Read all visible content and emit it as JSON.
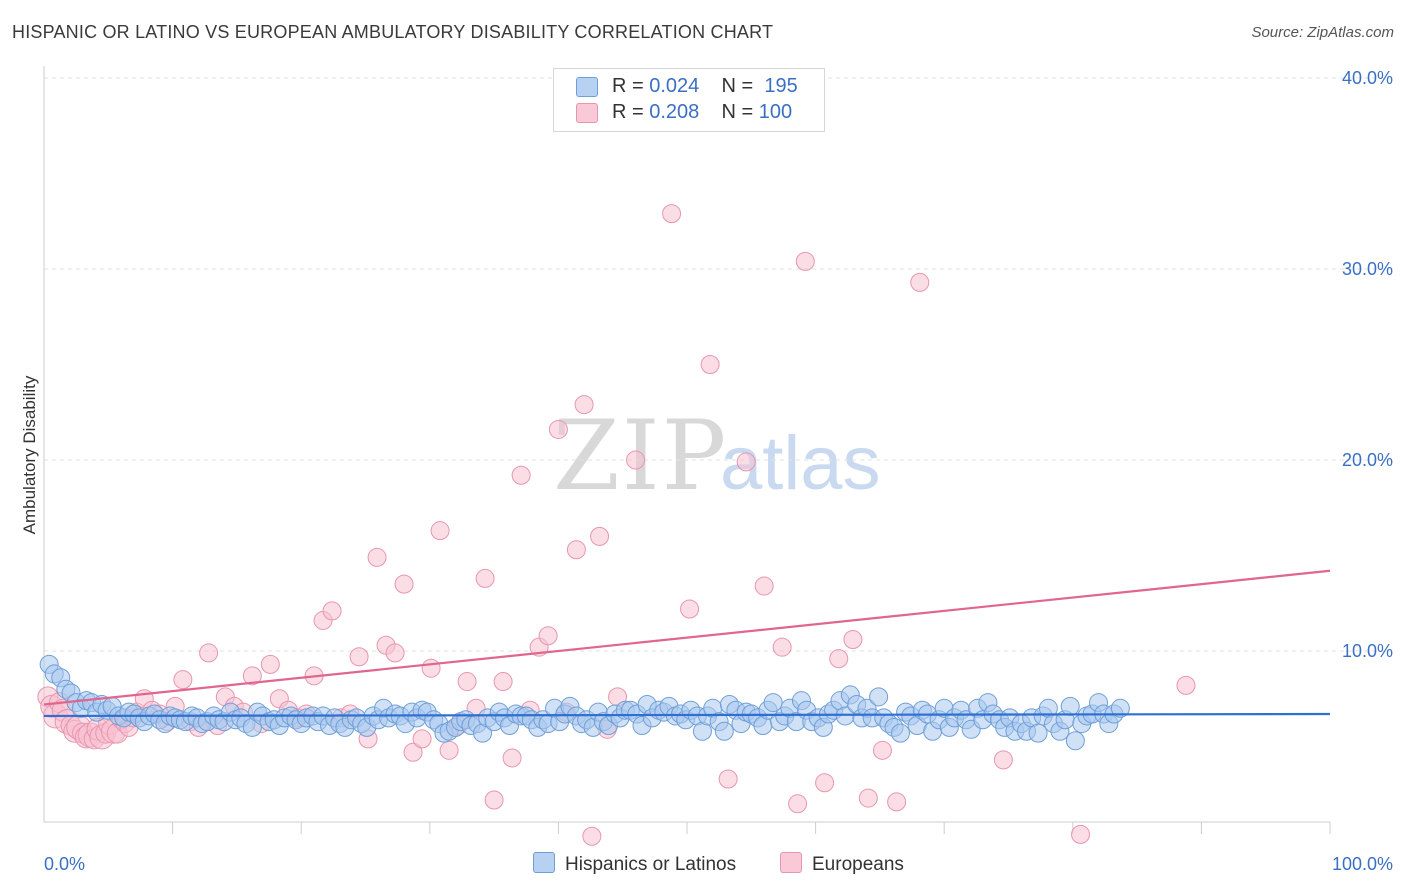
{
  "title": "HISPANIC OR LATINO VS EUROPEAN AMBULATORY DISABILITY CORRELATION CHART",
  "source": "Source: ZipAtlas.com",
  "watermark": {
    "zip": "ZIP",
    "atlas": "atlas"
  },
  "legend": {
    "rows": [
      {
        "r_label": "R = ",
        "r_value": "0.024",
        "n_label": "N = ",
        "n_value": "195"
      },
      {
        "r_label": "R = ",
        "r_value": "0.208",
        "n_label": "N = ",
        "n_value": "100"
      }
    ]
  },
  "bottom_legend": [
    "Hispanics or Latinos",
    "Europeans"
  ],
  "colors": {
    "blue_fill": "#a9c8ef",
    "blue_stroke": "#6f9fd8",
    "blue_line": "#2e6fd1",
    "pink_fill": "#f7c1d1",
    "pink_stroke": "#e896b0",
    "pink_line": "#e0668f",
    "axis_label": "#3b6fc4",
    "grid": "#e2e2e2"
  },
  "chart_data": {
    "type": "scatter",
    "title": "HISPANIC OR LATINO VS EUROPEAN AMBULATORY DISABILITY CORRELATION CHART",
    "xlabel": "",
    "ylabel": "Ambulatory Disability",
    "xlim": [
      0,
      100
    ],
    "ylim": [
      0,
      40
    ],
    "x_tick_labels": [
      "0.0%",
      "100.0%"
    ],
    "y_ticks": [
      10,
      20,
      30,
      40
    ],
    "y_tick_labels": [
      "10.0%",
      "20.0%",
      "30.0%",
      "40.0%"
    ],
    "grid": true,
    "legend_position": "top-center",
    "series": [
      {
        "name": "Hispanics or Latinos",
        "r": 0.024,
        "n": 195,
        "trend": [
          [
            0,
            6.6
          ],
          [
            100,
            6.7
          ]
        ],
        "points": [
          [
            0.4,
            9.3
          ],
          [
            0.8,
            8.8
          ],
          [
            1.3,
            8.6
          ],
          [
            1.7,
            8.0
          ],
          [
            2.1,
            7.8
          ],
          [
            2.5,
            7.3
          ],
          [
            2.9,
            7.0
          ],
          [
            3.3,
            7.4
          ],
          [
            3.7,
            7.3
          ],
          [
            4.1,
            6.8
          ],
          [
            4.5,
            7.2
          ],
          [
            4.9,
            6.9
          ],
          [
            5.3,
            7.1
          ],
          [
            5.8,
            6.6
          ],
          [
            6.2,
            6.5
          ],
          [
            6.6,
            6.8
          ],
          [
            7.0,
            6.7
          ],
          [
            7.4,
            6.5
          ],
          [
            7.8,
            6.3
          ],
          [
            8.2,
            6.6
          ],
          [
            8.6,
            6.7
          ],
          [
            9.0,
            6.4
          ],
          [
            9.4,
            6.2
          ],
          [
            9.8,
            6.6
          ],
          [
            10.2,
            6.5
          ],
          [
            10.6,
            6.4
          ],
          [
            11.0,
            6.3
          ],
          [
            11.5,
            6.6
          ],
          [
            11.9,
            6.5
          ],
          [
            12.3,
            6.2
          ],
          [
            12.7,
            6.3
          ],
          [
            13.2,
            6.6
          ],
          [
            13.6,
            6.4
          ],
          [
            14.0,
            6.3
          ],
          [
            14.5,
            6.8
          ],
          [
            14.9,
            6.4
          ],
          [
            15.3,
            6.5
          ],
          [
            15.7,
            6.2
          ],
          [
            16.2,
            6.0
          ],
          [
            16.6,
            6.8
          ],
          [
            17.0,
            6.6
          ],
          [
            17.5,
            6.3
          ],
          [
            17.9,
            6.4
          ],
          [
            18.3,
            6.1
          ],
          [
            18.7,
            6.5
          ],
          [
            19.2,
            6.6
          ],
          [
            19.6,
            6.4
          ],
          [
            20.0,
            6.2
          ],
          [
            20.4,
            6.5
          ],
          [
            20.9,
            6.6
          ],
          [
            21.3,
            6.3
          ],
          [
            21.7,
            6.6
          ],
          [
            22.2,
            6.1
          ],
          [
            22.6,
            6.5
          ],
          [
            23.0,
            6.2
          ],
          [
            23.4,
            6.0
          ],
          [
            23.9,
            6.4
          ],
          [
            24.3,
            6.5
          ],
          [
            24.7,
            6.2
          ],
          [
            25.1,
            6.0
          ],
          [
            25.6,
            6.6
          ],
          [
            26.0,
            6.4
          ],
          [
            26.4,
            7.0
          ],
          [
            26.8,
            6.5
          ],
          [
            27.3,
            6.7
          ],
          [
            27.7,
            6.6
          ],
          [
            28.1,
            6.2
          ],
          [
            28.6,
            6.8
          ],
          [
            29.0,
            6.5
          ],
          [
            29.4,
            6.9
          ],
          [
            29.8,
            6.8
          ],
          [
            30.3,
            6.4
          ],
          [
            30.7,
            6.2
          ],
          [
            31.1,
            5.7
          ],
          [
            31.5,
            5.8
          ],
          [
            32.0,
            6.0
          ],
          [
            32.4,
            6.3
          ],
          [
            32.8,
            6.4
          ],
          [
            33.2,
            6.1
          ],
          [
            33.7,
            6.2
          ],
          [
            34.1,
            5.7
          ],
          [
            34.5,
            6.5
          ],
          [
            35.0,
            6.3
          ],
          [
            35.4,
            6.8
          ],
          [
            35.8,
            6.5
          ],
          [
            36.2,
            6.1
          ],
          [
            36.7,
            6.7
          ],
          [
            37.1,
            6.6
          ],
          [
            37.5,
            6.6
          ],
          [
            37.9,
            6.4
          ],
          [
            38.4,
            6.0
          ],
          [
            38.8,
            6.4
          ],
          [
            39.2,
            6.2
          ],
          [
            39.7,
            7.0
          ],
          [
            40.1,
            6.3
          ],
          [
            40.5,
            6.7
          ],
          [
            40.9,
            7.1
          ],
          [
            41.4,
            6.6
          ],
          [
            41.8,
            6.2
          ],
          [
            42.2,
            6.4
          ],
          [
            42.7,
            6.0
          ],
          [
            43.1,
            6.8
          ],
          [
            43.5,
            6.3
          ],
          [
            43.9,
            6.1
          ],
          [
            44.4,
            6.7
          ],
          [
            44.8,
            6.5
          ],
          [
            45.2,
            6.9
          ],
          [
            45.6,
            6.9
          ],
          [
            46.1,
            6.7
          ],
          [
            46.5,
            6.1
          ],
          [
            46.9,
            7.2
          ],
          [
            47.3,
            6.5
          ],
          [
            47.8,
            6.9
          ],
          [
            48.2,
            6.8
          ],
          [
            48.6,
            7.1
          ],
          [
            49.1,
            6.6
          ],
          [
            49.5,
            6.7
          ],
          [
            49.9,
            6.4
          ],
          [
            50.3,
            6.9
          ],
          [
            50.8,
            6.6
          ],
          [
            51.2,
            5.8
          ],
          [
            51.6,
            6.6
          ],
          [
            52.0,
            7.0
          ],
          [
            52.5,
            6.3
          ],
          [
            52.9,
            5.8
          ],
          [
            53.3,
            7.2
          ],
          [
            53.8,
            6.9
          ],
          [
            54.2,
            6.2
          ],
          [
            54.6,
            6.8
          ],
          [
            55.0,
            6.7
          ],
          [
            55.5,
            6.5
          ],
          [
            55.9,
            6.1
          ],
          [
            56.3,
            6.9
          ],
          [
            56.7,
            7.3
          ],
          [
            57.2,
            6.3
          ],
          [
            57.6,
            6.6
          ],
          [
            58.0,
            7.0
          ],
          [
            58.5,
            6.3
          ],
          [
            58.9,
            7.4
          ],
          [
            59.3,
            6.9
          ],
          [
            59.7,
            6.3
          ],
          [
            60.2,
            6.5
          ],
          [
            60.6,
            6.0
          ],
          [
            61.0,
            6.7
          ],
          [
            61.4,
            6.9
          ],
          [
            61.9,
            7.4
          ],
          [
            62.3,
            6.6
          ],
          [
            62.7,
            7.7
          ],
          [
            63.2,
            7.2
          ],
          [
            63.6,
            6.5
          ],
          [
            64.0,
            7.0
          ],
          [
            64.4,
            6.5
          ],
          [
            64.9,
            7.6
          ],
          [
            65.3,
            6.5
          ],
          [
            65.7,
            6.2
          ],
          [
            66.1,
            6.0
          ],
          [
            66.6,
            5.7
          ],
          [
            67.0,
            6.8
          ],
          [
            67.4,
            6.6
          ],
          [
            67.9,
            6.1
          ],
          [
            68.3,
            6.9
          ],
          [
            68.7,
            6.7
          ],
          [
            69.1,
            5.8
          ],
          [
            69.6,
            6.4
          ],
          [
            70.0,
            7.0
          ],
          [
            70.4,
            6.0
          ],
          [
            70.8,
            6.5
          ],
          [
            71.3,
            6.9
          ],
          [
            71.7,
            6.4
          ],
          [
            72.1,
            5.9
          ],
          [
            72.6,
            7.0
          ],
          [
            73.0,
            6.4
          ],
          [
            73.4,
            7.3
          ],
          [
            73.8,
            6.7
          ],
          [
            74.3,
            6.4
          ],
          [
            74.7,
            6.0
          ],
          [
            75.1,
            6.5
          ],
          [
            75.5,
            5.8
          ],
          [
            76.0,
            6.2
          ],
          [
            76.4,
            5.8
          ],
          [
            76.8,
            6.5
          ],
          [
            77.3,
            5.7
          ],
          [
            77.7,
            6.6
          ],
          [
            78.1,
            7.0
          ],
          [
            78.5,
            6.2
          ],
          [
            79.0,
            5.8
          ],
          [
            79.4,
            6.4
          ],
          [
            79.8,
            7.1
          ],
          [
            80.2,
            5.3
          ],
          [
            80.7,
            6.2
          ],
          [
            81.1,
            6.6
          ],
          [
            81.5,
            6.7
          ],
          [
            82.0,
            7.3
          ],
          [
            82.4,
            6.7
          ],
          [
            82.8,
            6.2
          ],
          [
            83.2,
            6.7
          ],
          [
            83.7,
            7.0
          ]
        ]
      },
      {
        "name": "Europeans",
        "r": 0.208,
        "n": 100,
        "trend": [
          [
            0,
            7.2
          ],
          [
            100,
            14.2
          ]
        ],
        "points": [
          [
            0.3,
            7.6
          ],
          [
            0.6,
            7.1
          ],
          [
            0.9,
            6.6
          ],
          [
            1.2,
            7.3
          ],
          [
            1.5,
            6.9
          ],
          [
            1.8,
            6.3
          ],
          [
            2.1,
            6.1
          ],
          [
            2.4,
            5.8
          ],
          [
            2.7,
            6.0
          ],
          [
            3.0,
            5.7
          ],
          [
            3.3,
            5.5
          ],
          [
            3.6,
            5.6
          ],
          [
            3.9,
            5.4
          ],
          [
            4.2,
            5.9
          ],
          [
            4.5,
            5.5
          ],
          [
            4.8,
            5.7
          ],
          [
            5.1,
            6.2
          ],
          [
            5.4,
            5.8
          ],
          [
            5.7,
            5.7
          ],
          [
            6.0,
            6.4
          ],
          [
            6.3,
            6.2
          ],
          [
            6.6,
            6.0
          ],
          [
            6.9,
            6.5
          ],
          [
            7.2,
            6.8
          ],
          [
            7.8,
            7.5
          ],
          [
            8.4,
            6.9
          ],
          [
            9.0,
            6.7
          ],
          [
            9.6,
            6.3
          ],
          [
            10.2,
            7.1
          ],
          [
            10.8,
            8.5
          ],
          [
            11.4,
            6.3
          ],
          [
            12.0,
            6.0
          ],
          [
            12.8,
            9.9
          ],
          [
            13.5,
            6.1
          ],
          [
            14.1,
            7.6
          ],
          [
            14.8,
            7.1
          ],
          [
            15.5,
            6.8
          ],
          [
            16.2,
            8.7
          ],
          [
            16.9,
            6.2
          ],
          [
            17.6,
            9.3
          ],
          [
            18.3,
            7.5
          ],
          [
            19.0,
            6.9
          ],
          [
            19.7,
            6.5
          ],
          [
            20.4,
            6.7
          ],
          [
            21.0,
            8.7
          ],
          [
            21.7,
            11.6
          ],
          [
            22.4,
            12.1
          ],
          [
            23.1,
            6.5
          ],
          [
            23.8,
            6.7
          ],
          [
            24.5,
            9.7
          ],
          [
            25.2,
            5.4
          ],
          [
            25.9,
            14.9
          ],
          [
            26.6,
            10.3
          ],
          [
            27.3,
            9.9
          ],
          [
            28.0,
            13.5
          ],
          [
            28.7,
            4.7
          ],
          [
            29.4,
            5.4
          ],
          [
            30.1,
            9.1
          ],
          [
            30.8,
            16.3
          ],
          [
            31.5,
            4.8
          ],
          [
            32.2,
            6.1
          ],
          [
            32.9,
            8.4
          ],
          [
            33.6,
            7.0
          ],
          [
            34.3,
            13.8
          ],
          [
            35.0,
            2.2
          ],
          [
            35.7,
            8.4
          ],
          [
            36.4,
            4.4
          ],
          [
            37.1,
            19.2
          ],
          [
            37.8,
            6.9
          ],
          [
            38.5,
            10.2
          ],
          [
            39.2,
            10.8
          ],
          [
            40.0,
            21.6
          ],
          [
            40.6,
            6.8
          ],
          [
            41.4,
            15.3
          ],
          [
            42.0,
            22.9
          ],
          [
            42.6,
            0.3
          ],
          [
            43.2,
            16.0
          ],
          [
            43.8,
            5.9
          ],
          [
            44.6,
            7.6
          ],
          [
            46.0,
            20.0
          ],
          [
            47.4,
            38.5
          ],
          [
            48.8,
            32.9
          ],
          [
            50.2,
            12.2
          ],
          [
            51.8,
            25.0
          ],
          [
            53.2,
            3.3
          ],
          [
            54.6,
            19.9
          ],
          [
            56.0,
            13.4
          ],
          [
            57.4,
            10.2
          ],
          [
            58.6,
            2.0
          ],
          [
            59.2,
            30.4
          ],
          [
            60.7,
            3.1
          ],
          [
            61.8,
            9.6
          ],
          [
            62.9,
            10.6
          ],
          [
            64.1,
            2.3
          ],
          [
            65.2,
            4.8
          ],
          [
            66.3,
            2.1
          ],
          [
            68.1,
            29.3
          ],
          [
            74.6,
            4.3
          ],
          [
            80.6,
            0.4
          ],
          [
            88.8,
            8.2
          ]
        ]
      }
    ]
  }
}
